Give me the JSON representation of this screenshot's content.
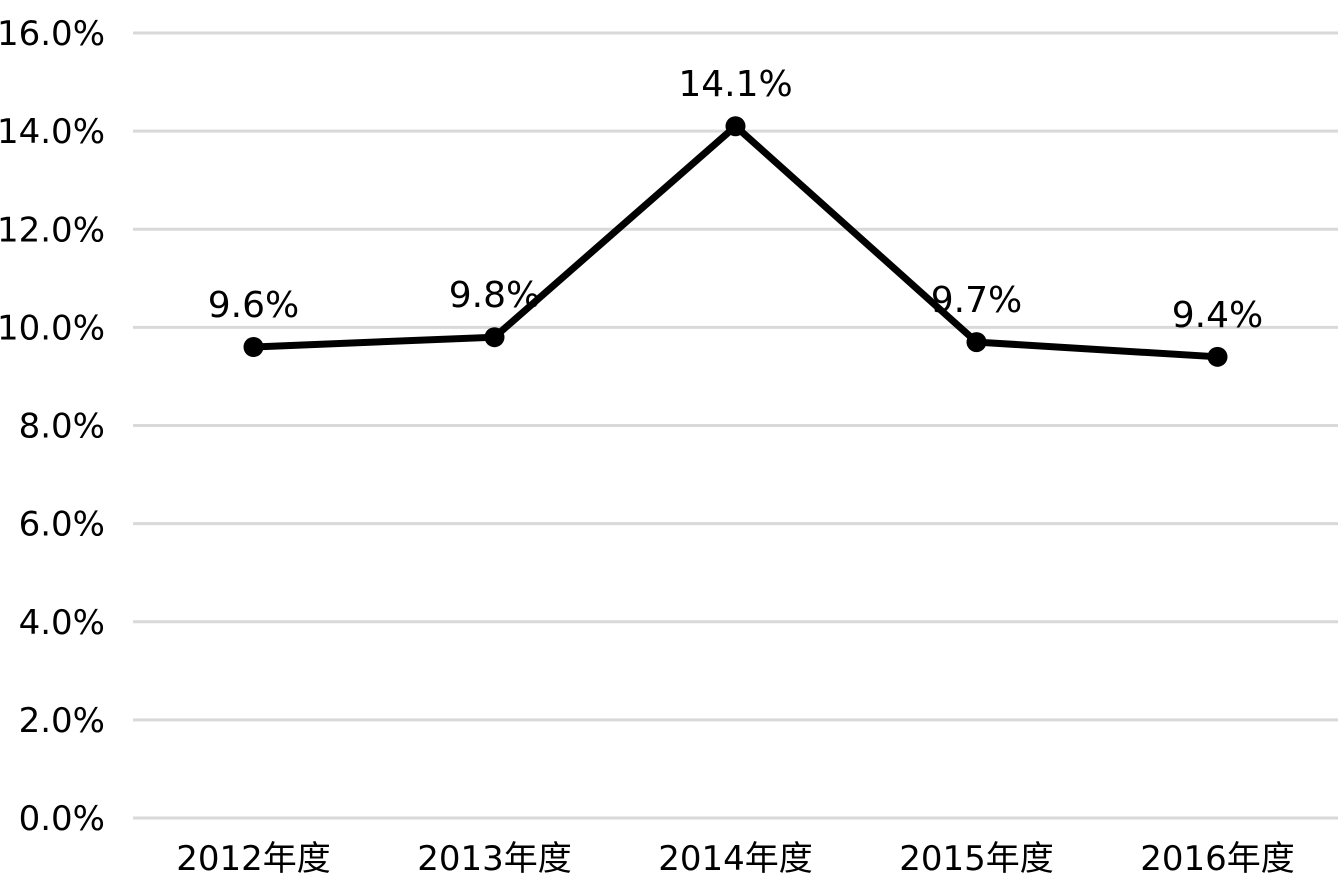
{
  "chart_data": {
    "type": "line",
    "categories": [
      "2012年度",
      "2013年度",
      "2014年度",
      "2015年度",
      "2016年度"
    ],
    "series": [
      {
        "values": [
          9.6,
          9.8,
          14.1,
          9.7,
          9.4
        ],
        "data_labels": [
          "9.6%",
          "9.8%",
          "14.1%",
          "9.7%",
          "9.4%"
        ]
      }
    ],
    "yticks": [
      "0.0%",
      "2.0%",
      "4.0%",
      "6.0%",
      "8.0%",
      "10.0%",
      "12.0%",
      "14.0%",
      "16.0%"
    ],
    "ylim": [
      0,
      16
    ],
    "grid": true,
    "line_color": "#000000",
    "grid_color": "#d9d9d9"
  }
}
